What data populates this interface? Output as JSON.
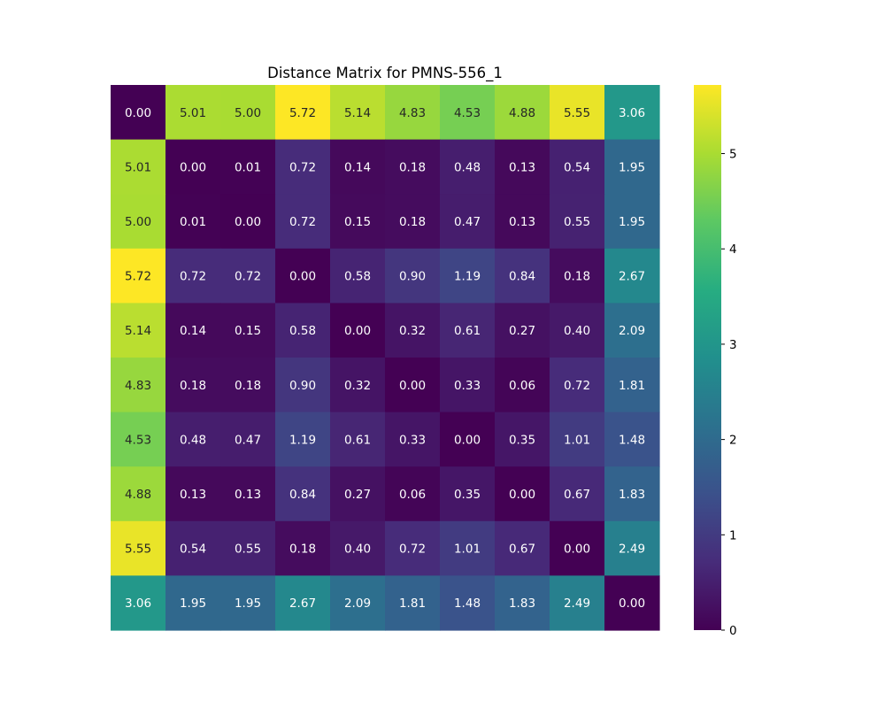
{
  "chart_data": {
    "type": "heatmap",
    "title": "Distance Matrix for PMNS-556_1",
    "xlabel": "",
    "ylabel": "",
    "colormap": "viridis",
    "value_range": [
      0,
      5.72
    ],
    "value_format": "2 decimals",
    "annotations": "values printed in each cell",
    "rows": 10,
    "cols": 10,
    "show_axis_ticks": false,
    "values": [
      [
        0.0,
        5.01,
        5.0,
        5.72,
        5.14,
        4.83,
        4.53,
        4.88,
        5.55,
        3.06
      ],
      [
        5.01,
        0.0,
        0.01,
        0.72,
        0.14,
        0.18,
        0.48,
        0.13,
        0.54,
        1.95
      ],
      [
        5.0,
        0.01,
        0.0,
        0.72,
        0.15,
        0.18,
        0.47,
        0.13,
        0.55,
        1.95
      ],
      [
        5.72,
        0.72,
        0.72,
        0.0,
        0.58,
        0.9,
        1.19,
        0.84,
        0.18,
        2.67
      ],
      [
        5.14,
        0.14,
        0.15,
        0.58,
        0.0,
        0.32,
        0.61,
        0.27,
        0.4,
        2.09
      ],
      [
        4.83,
        0.18,
        0.18,
        0.9,
        0.32,
        0.0,
        0.33,
        0.06,
        0.72,
        1.81
      ],
      [
        4.53,
        0.48,
        0.47,
        1.19,
        0.61,
        0.33,
        0.0,
        0.35,
        1.01,
        1.48
      ],
      [
        4.88,
        0.13,
        0.13,
        0.84,
        0.27,
        0.06,
        0.35,
        0.0,
        0.67,
        1.83
      ],
      [
        5.55,
        0.54,
        0.55,
        0.18,
        0.4,
        0.72,
        1.01,
        0.67,
        0.0,
        2.49
      ],
      [
        3.06,
        1.95,
        1.95,
        2.67,
        2.09,
        1.81,
        1.48,
        1.83,
        2.49,
        0.0
      ]
    ],
    "colorbar": {
      "ticks": [
        0,
        1,
        2,
        3,
        4,
        5
      ],
      "tick_labels": [
        "0",
        "1",
        "2",
        "3",
        "4",
        "5"
      ]
    }
  }
}
